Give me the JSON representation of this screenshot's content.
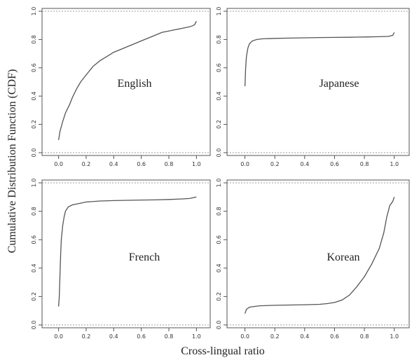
{
  "figure": {
    "ylabel": "Cumulative Distribution Function (CDF)",
    "xlabel": "Cross-lingual ratio"
  },
  "chart_data": [
    {
      "type": "line",
      "annotation": "English",
      "xlim": [
        -0.12,
        1.1
      ],
      "ylim": [
        -0.02,
        1.02
      ],
      "x_ticks": [
        "0.0",
        "0.2",
        "0.4",
        "0.6",
        "0.8",
        "1.0"
      ],
      "y_ticks": [
        "0.0",
        "0.2",
        "0.4",
        "0.6",
        "0.8",
        "1.0"
      ],
      "reference_lines": [
        0.0,
        1.0
      ],
      "series": [
        {
          "color": "#555555",
          "points": [
            [
              0.0,
              0.09
            ],
            [
              0.01,
              0.15
            ],
            [
              0.03,
              0.22
            ],
            [
              0.05,
              0.28
            ],
            [
              0.08,
              0.34
            ],
            [
              0.1,
              0.39
            ],
            [
              0.13,
              0.45
            ],
            [
              0.16,
              0.5
            ],
            [
              0.2,
              0.55
            ],
            [
              0.25,
              0.61
            ],
            [
              0.3,
              0.65
            ],
            [
              0.35,
              0.68
            ],
            [
              0.4,
              0.71
            ],
            [
              0.45,
              0.73
            ],
            [
              0.5,
              0.75
            ],
            [
              0.55,
              0.77
            ],
            [
              0.6,
              0.79
            ],
            [
              0.65,
              0.81
            ],
            [
              0.7,
              0.83
            ],
            [
              0.75,
              0.85
            ],
            [
              0.8,
              0.86
            ],
            [
              0.85,
              0.87
            ],
            [
              0.9,
              0.88
            ],
            [
              0.95,
              0.89
            ],
            [
              0.98,
              0.9
            ],
            [
              0.99,
              0.91
            ],
            [
              1.0,
              0.93
            ]
          ]
        }
      ]
    },
    {
      "type": "line",
      "annotation": "Japanese",
      "xlim": [
        -0.12,
        1.1
      ],
      "ylim": [
        -0.02,
        1.02
      ],
      "x_ticks": [
        "0.0",
        "0.2",
        "0.4",
        "0.6",
        "0.8",
        "1.0"
      ],
      "y_ticks": [
        "0.0",
        "0.2",
        "0.4",
        "0.6",
        "0.8",
        "1.0"
      ],
      "reference_lines": [
        0.0,
        1.0
      ],
      "series": [
        {
          "color": "#555555",
          "points": [
            [
              0.0,
              0.47
            ],
            [
              0.005,
              0.6
            ],
            [
              0.01,
              0.68
            ],
            [
              0.02,
              0.74
            ],
            [
              0.03,
              0.77
            ],
            [
              0.05,
              0.79
            ],
            [
              0.08,
              0.8
            ],
            [
              0.12,
              0.805
            ],
            [
              0.2,
              0.808
            ],
            [
              0.3,
              0.81
            ],
            [
              0.4,
              0.812
            ],
            [
              0.5,
              0.814
            ],
            [
              0.6,
              0.815
            ],
            [
              0.7,
              0.816
            ],
            [
              0.8,
              0.818
            ],
            [
              0.9,
              0.82
            ],
            [
              0.96,
              0.822
            ],
            [
              0.99,
              0.83
            ],
            [
              1.0,
              0.85
            ]
          ]
        }
      ]
    },
    {
      "type": "line",
      "annotation": "French",
      "xlim": [
        -0.12,
        1.1
      ],
      "ylim": [
        -0.02,
        1.02
      ],
      "x_ticks": [
        "0.0",
        "0.2",
        "0.4",
        "0.6",
        "0.8",
        "1.0"
      ],
      "y_ticks": [
        "0.0",
        "0.2",
        "0.4",
        "0.6",
        "0.8",
        "1.0"
      ],
      "reference_lines": [
        0.0,
        1.0
      ],
      "series": [
        {
          "color": "#555555",
          "points": [
            [
              0.0,
              0.13
            ],
            [
              0.005,
              0.2
            ],
            [
              0.01,
              0.35
            ],
            [
              0.015,
              0.5
            ],
            [
              0.02,
              0.6
            ],
            [
              0.03,
              0.7
            ],
            [
              0.04,
              0.76
            ],
            [
              0.05,
              0.8
            ],
            [
              0.07,
              0.83
            ],
            [
              0.1,
              0.845
            ],
            [
              0.15,
              0.855
            ],
            [
              0.2,
              0.865
            ],
            [
              0.3,
              0.872
            ],
            [
              0.4,
              0.875
            ],
            [
              0.5,
              0.877
            ],
            [
              0.6,
              0.879
            ],
            [
              0.7,
              0.88
            ],
            [
              0.8,
              0.883
            ],
            [
              0.9,
              0.887
            ],
            [
              0.95,
              0.89
            ],
            [
              1.0,
              0.9
            ]
          ]
        }
      ]
    },
    {
      "type": "line",
      "annotation": "Korean",
      "xlim": [
        -0.12,
        1.1
      ],
      "ylim": [
        -0.02,
        1.02
      ],
      "x_ticks": [
        "0.0",
        "0.2",
        "0.4",
        "0.6",
        "0.8",
        "1.0"
      ],
      "y_ticks": [
        "0.0",
        "0.2",
        "0.4",
        "0.6",
        "0.8",
        "1.0"
      ],
      "reference_lines": [
        0.0,
        1.0
      ],
      "series": [
        {
          "color": "#555555",
          "points": [
            [
              0.0,
              0.08
            ],
            [
              0.01,
              0.11
            ],
            [
              0.03,
              0.125
            ],
            [
              0.06,
              0.13
            ],
            [
              0.1,
              0.135
            ],
            [
              0.2,
              0.138
            ],
            [
              0.3,
              0.14
            ],
            [
              0.4,
              0.142
            ],
            [
              0.5,
              0.145
            ],
            [
              0.55,
              0.15
            ],
            [
              0.6,
              0.158
            ],
            [
              0.65,
              0.175
            ],
            [
              0.7,
              0.21
            ],
            [
              0.75,
              0.27
            ],
            [
              0.8,
              0.34
            ],
            [
              0.85,
              0.43
            ],
            [
              0.9,
              0.54
            ],
            [
              0.93,
              0.65
            ],
            [
              0.95,
              0.76
            ],
            [
              0.97,
              0.84
            ],
            [
              0.99,
              0.87
            ],
            [
              1.0,
              0.9
            ]
          ]
        }
      ]
    }
  ]
}
